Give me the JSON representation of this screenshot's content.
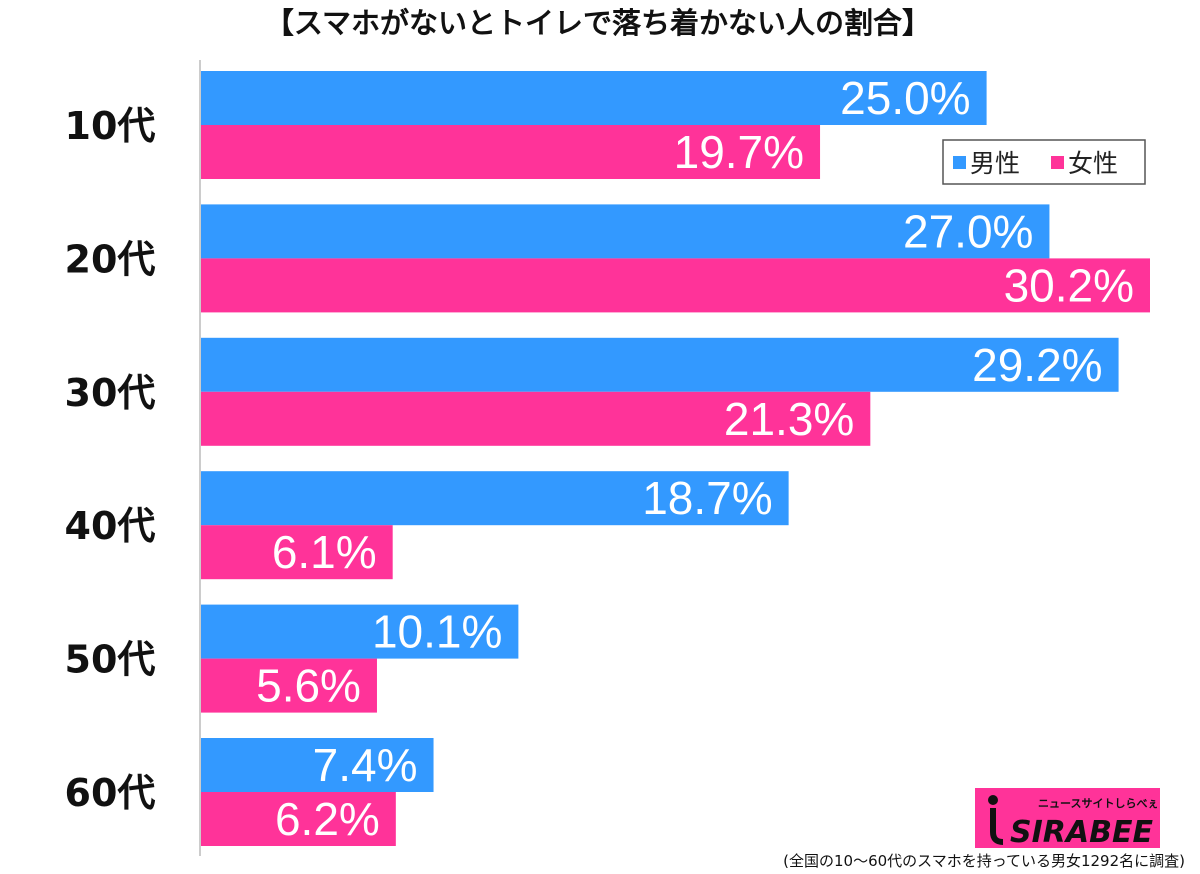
{
  "chart_data": {
    "type": "bar",
    "orientation": "horizontal",
    "title": "【スマホがないとトイレで落ち着かない人の割合】",
    "categories": [
      "10代",
      "20代",
      "30代",
      "40代",
      "50代",
      "60代"
    ],
    "series": [
      {
        "name": "男性",
        "color": "#3399ff",
        "values": [
          25.0,
          27.0,
          29.2,
          18.7,
          10.1,
          7.4
        ]
      },
      {
        "name": "女性",
        "color": "#ff3399",
        "values": [
          19.7,
          30.2,
          21.3,
          6.1,
          5.6,
          6.2
        ]
      }
    ],
    "value_suffix": "%",
    "xlim": [
      0,
      30.2
    ],
    "legend_position": "top-right",
    "grid": false,
    "footnote": "(全国の10〜60代のスマホを持っている男女1292名に調査)"
  },
  "logo": {
    "tagline": "ニュースサイトしらべぇ",
    "name": "SIRABEE",
    "color": "#ff3399"
  }
}
